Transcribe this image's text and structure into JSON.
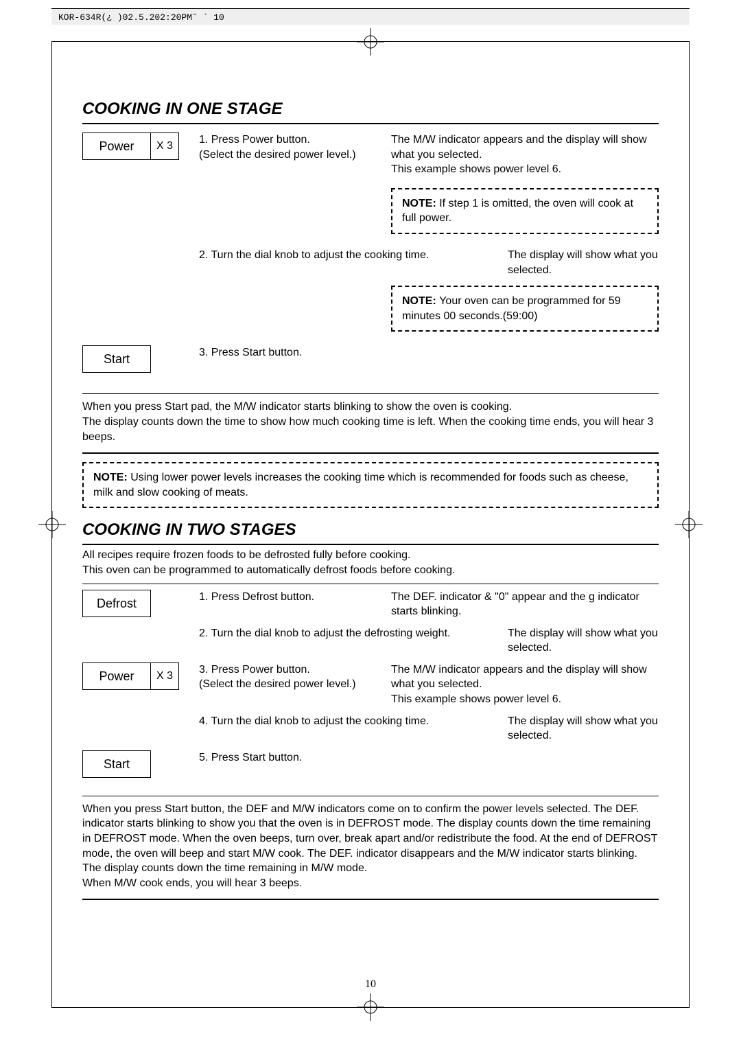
{
  "header_text": "KOR-634R(¿ )02.5.202:20PM˜  `  10",
  "page_number": "10",
  "section1": {
    "title": "COOKING IN ONE STAGE",
    "step1": {
      "btn_main": "Power",
      "btn_sub": "X 3",
      "instruction": "1. Press Power button.\n(Select the desired power level.)",
      "result": "The M/W indicator appears and the display will show what you selected.\nThis example shows power level 6."
    },
    "note1": "If step 1 is omitted, the oven will cook at full power.",
    "step2": {
      "instruction": "2. Turn the dial knob to adjust the cooking time.",
      "result": "The display will show what you selected."
    },
    "note2": "Your oven can be programmed for 59 minutes 00 seconds.(59:00)",
    "step3": {
      "btn_main": "Start",
      "instruction": "3. Press Start button."
    },
    "after": "When you press Start pad, the M/W indicator starts blinking to show the oven is cooking.\nThe display counts down the time to show how much cooking time is left. When the cooking time ends, you will hear 3 beeps.",
    "note3": "Using lower power levels increases the cooking time which is recommended for foods such as cheese, milk and slow cooking of meats."
  },
  "section2": {
    "title": "COOKING IN TWO STAGES",
    "intro": "All recipes require frozen foods to be defrosted fully before cooking.\nThis oven can be programmed to automatically defrost foods before cooking.",
    "step1": {
      "btn_main": "Defrost",
      "instruction": "1. Press Defrost button.",
      "result": "The DEF. indicator & \"0\" appear and the g indicator starts blinking."
    },
    "step2": {
      "instruction": "2. Turn the dial knob to adjust the defrosting weight.",
      "result": "The display will show what you selected."
    },
    "step3": {
      "btn_main": "Power",
      "btn_sub": "X 3",
      "instruction": "3. Press Power button.\n(Select the desired power level.)",
      "result": "The M/W indicator appears and the display will show what you selected.\nThis example shows power level 6."
    },
    "step4": {
      "instruction": "4. Turn the dial knob to adjust the cooking time.",
      "result": "The display will show what you selected."
    },
    "step5": {
      "btn_main": "Start",
      "instruction": "5. Press Start button."
    },
    "after": "When you press Start button, the DEF and M/W indicators come on to confirm the power levels selected. The DEF. indicator starts blinking to show you that the oven is in DEFROST mode. The display counts down the time remaining in DEFROST mode. When the oven beeps, turn over, break apart and/or redistribute the food. At the end of DEFROST mode, the oven will beep and start M/W cook. The DEF. indicator disappears and the M/W indicator starts blinking. The display counts down the time remaining in M/W mode.\nWhen M/W cook ends, you will hear 3 beeps."
  },
  "labels": {
    "note": "NOTE: "
  }
}
